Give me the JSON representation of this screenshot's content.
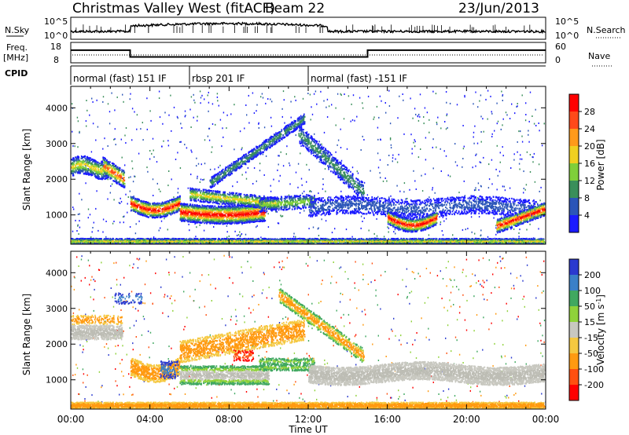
{
  "header": {
    "station": "Christmas Valley West (fitACF)",
    "beam": "Beam 22",
    "date": "23/Jun/2013"
  },
  "strip_labels": {
    "nsky": "N.Sky",
    "nsky_ticks": [
      "10^5",
      "10^0"
    ],
    "nsearch": "N.Search",
    "freq_line1": "Freq.",
    "freq_line2": "[MHz]",
    "freq_ticks": [
      "18",
      "8"
    ],
    "nave": "Nave",
    "nave_ticks": [
      "60",
      "0"
    ],
    "cpid": "CPID"
  },
  "cpid_segments": [
    {
      "label": "normal (fast) 151 IF",
      "start": 0.0,
      "end": 6.0
    },
    {
      "label": "rbsp 201 IF",
      "start": 6.0,
      "end": 12.0
    },
    {
      "label": "normal (fast) -151 IF",
      "start": 12.0,
      "end": 24.0
    }
  ],
  "chart_data": [
    {
      "type": "heatmap",
      "panel": "power",
      "ylabel": "Slant Range [km]",
      "yticks": [
        "1000",
        "2000",
        "3000",
        "4000"
      ],
      "ylim": [
        180,
        4600
      ],
      "colorbar_label": "Power [dB]",
      "colorbar_ticks": [
        "4",
        "8",
        "12",
        "16",
        "20",
        "24",
        "28"
      ],
      "colorbar_colors": [
        "#1a1aff",
        "#2b55b8",
        "#3a8f5a",
        "#7fcf3a",
        "#f0d020",
        "#ff9a1a",
        "#ff4a1a",
        "#ff0000"
      ],
      "colors": {
        "low": "#1f3fcf",
        "mid": "#3f9f5f",
        "high": "#ff2a10"
      }
    },
    {
      "type": "heatmap",
      "panel": "velocity",
      "ylabel": "Slant Range [km]",
      "yticks": [
        "1000",
        "2000",
        "3000",
        "4000"
      ],
      "ylim": [
        180,
        4600
      ],
      "colorbar_label": "Velocity [m s^-1]",
      "colorbar_ticks": [
        "200",
        "100",
        "50",
        "15",
        "-15",
        "-50",
        "-100",
        "-200"
      ],
      "colorbar_colors": [
        "#2a3acf",
        "#3a80c8",
        "#40a860",
        "#8fd23a",
        "#c8c8c0",
        "#f5c840",
        "#ff9a10",
        "#ff5010",
        "#ff0000"
      ],
      "xlabel": "Time UT",
      "xticks": [
        "00:00",
        "04:00",
        "08:00",
        "12:00",
        "16:00",
        "20:00",
        "00:00"
      ],
      "xlim": [
        0,
        24
      ]
    }
  ],
  "strips": {
    "frequency": {
      "values": [
        [
          0,
          14.2
        ],
        [
          3.0,
          14.2
        ],
        [
          3.0,
          10.9
        ],
        [
          15.0,
          10.9
        ],
        [
          15.0,
          14.2
        ],
        [
          24,
          14.2
        ]
      ],
      "ylim": [
        8,
        18
      ]
    }
  }
}
